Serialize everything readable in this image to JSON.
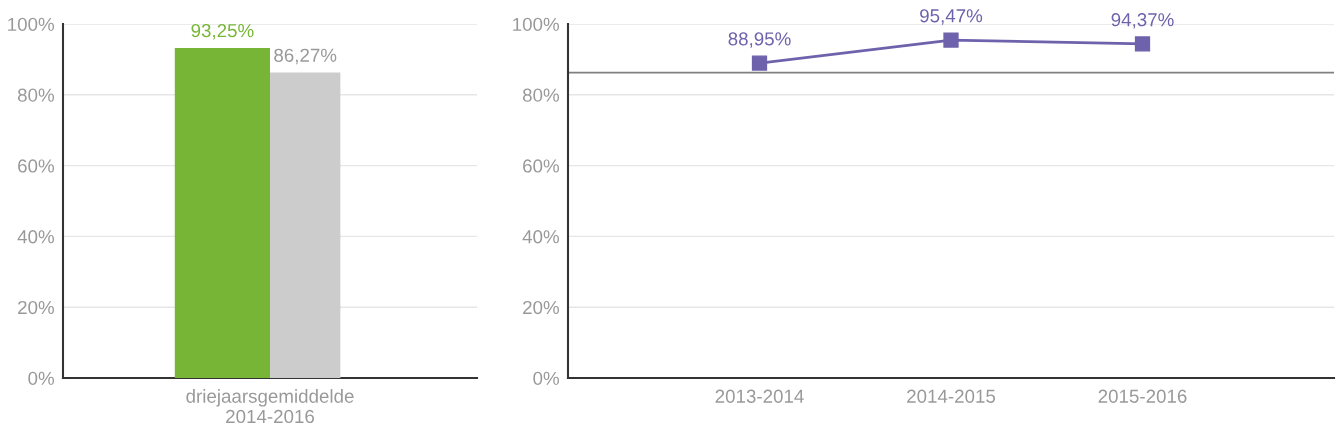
{
  "chart_data": [
    {
      "type": "bar",
      "categories": [
        "driejaarsgemiddelde\n2014-2016"
      ],
      "series": [
        {
          "color": "#77b536",
          "values": [
            93.25
          ],
          "value_labels": [
            "93,25%"
          ]
        },
        {
          "color": "#cccccc",
          "values": [
            86.27
          ],
          "value_labels": [
            "86,27%"
          ]
        }
      ],
      "ylim": [
        0,
        100
      ],
      "yticks": [
        {
          "value": 0,
          "label": "0%"
        },
        {
          "value": 20,
          "label": "20%"
        },
        {
          "value": 40,
          "label": "40%"
        },
        {
          "value": 60,
          "label": "60%"
        },
        {
          "value": 80,
          "label": "80%"
        },
        {
          "value": 100,
          "label": "100%"
        }
      ],
      "grid": "y"
    },
    {
      "type": "line",
      "categories": [
        "2013-2014",
        "2014-2015",
        "2015-2016"
      ],
      "series": [
        {
          "color": "#6e62ac",
          "values": [
            88.95,
            95.47,
            94.37
          ],
          "value_labels": [
            "88,95%",
            "95,47%",
            "94,37%"
          ]
        }
      ],
      "marker": "square",
      "line_style": "solid",
      "ref_lines": [
        {
          "axis": "y",
          "value": 86.27,
          "color": "#808080"
        }
      ],
      "ylim": [
        0,
        100
      ],
      "yticks": [
        {
          "value": 0,
          "label": "0%"
        },
        {
          "value": 20,
          "label": "20%"
        },
        {
          "value": 40,
          "label": "40%"
        },
        {
          "value": 60,
          "label": "60%"
        },
        {
          "value": 80,
          "label": "80%"
        },
        {
          "value": 100,
          "label": "100%"
        }
      ],
      "grid": "y"
    }
  ]
}
